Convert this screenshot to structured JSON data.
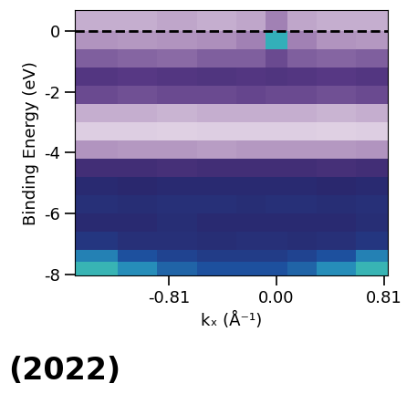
{
  "chart_data": {
    "type": "heatmap",
    "x_label": "kₓ (Å⁻¹)",
    "y_label": "Binding Energy (eV)",
    "annotation": "(2022)",
    "xlim": [
      -1.52,
      0.84
    ],
    "ylim": [
      -8.05,
      0.7
    ],
    "xticks": [
      {
        "value": -0.81,
        "label": "-0.81"
      },
      {
        "value": 0,
        "label": "0.00"
      },
      {
        "value": 0.81,
        "label": "0.81"
      }
    ],
    "yticks": [
      0,
      -2,
      -4,
      -6,
      -8
    ],
    "fermi_level": 0,
    "x_edges": [
      -1.52,
      -1.2,
      -0.9,
      -0.6,
      -0.3,
      -0.08,
      0.08,
      0.3,
      0.6,
      0.84
    ],
    "y_edges": [
      0.7,
      0.0,
      -0.6,
      -1.2,
      -1.8,
      -2.4,
      -3.0,
      -3.6,
      -4.2,
      -4.8,
      -5.4,
      -6.0,
      -6.6,
      -7.2,
      -7.6,
      -8.05
    ],
    "cells": [
      [
        0.2,
        0.2,
        0.22,
        0.2,
        0.22,
        0.3,
        0.22,
        0.2,
        0.2
      ],
      [
        0.26,
        0.25,
        0.26,
        0.27,
        0.3,
        0.9,
        0.3,
        0.26,
        0.25
      ],
      [
        0.36,
        0.35,
        0.34,
        0.36,
        0.36,
        0.4,
        0.36,
        0.35,
        0.36
      ],
      [
        0.45,
        0.44,
        0.45,
        0.46,
        0.45,
        0.46,
        0.45,
        0.44,
        0.45
      ],
      [
        0.4,
        0.39,
        0.4,
        0.4,
        0.41,
        0.4,
        0.4,
        0.39,
        0.4
      ],
      [
        0.2,
        0.2,
        0.19,
        0.2,
        0.2,
        0.2,
        0.2,
        0.19,
        0.2
      ],
      [
        0.12,
        0.12,
        0.11,
        0.12,
        0.12,
        0.12,
        0.12,
        0.11,
        0.12
      ],
      [
        0.26,
        0.25,
        0.25,
        0.24,
        0.25,
        0.25,
        0.25,
        0.25,
        0.26
      ],
      [
        0.5,
        0.5,
        0.49,
        0.5,
        0.5,
        0.5,
        0.5,
        0.49,
        0.5
      ],
      [
        0.6,
        0.59,
        0.6,
        0.6,
        0.6,
        0.6,
        0.6,
        0.59,
        0.6
      ],
      [
        0.62,
        0.61,
        0.62,
        0.62,
        0.61,
        0.62,
        0.62,
        0.61,
        0.62
      ],
      [
        0.6,
        0.6,
        0.61,
        0.6,
        0.6,
        0.6,
        0.6,
        0.6,
        0.61
      ],
      [
        0.64,
        0.62,
        0.62,
        0.61,
        0.62,
        0.62,
        0.61,
        0.62,
        0.64
      ],
      [
        0.8,
        0.72,
        0.68,
        0.66,
        0.66,
        0.66,
        0.68,
        0.72,
        0.8
      ],
      [
        0.92,
        0.82,
        0.75,
        0.72,
        0.72,
        0.72,
        0.75,
        0.82,
        0.92
      ]
    ],
    "zlim": [
      0,
      1
    ]
  }
}
